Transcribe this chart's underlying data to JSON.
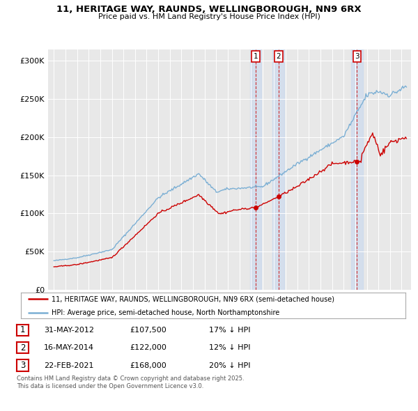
{
  "title1": "11, HERITAGE WAY, RAUNDS, WELLINGBOROUGH, NN9 6RX",
  "title2": "Price paid vs. HM Land Registry's House Price Index (HPI)",
  "background_color": "#ffffff",
  "plot_bg_color": "#e8e8e8",
  "hpi_color": "#7bafd4",
  "price_color": "#cc0000",
  "sale_dates": [
    2012.42,
    2014.37,
    2021.15
  ],
  "sale_prices": [
    107500,
    122000,
    168000
  ],
  "sale_labels": [
    "1",
    "2",
    "3"
  ],
  "legend_entries": [
    "11, HERITAGE WAY, RAUNDS, WELLINGBOROUGH, NN9 6RX (semi-detached house)",
    "HPI: Average price, semi-detached house, North Northamptonshire"
  ],
  "table_rows": [
    {
      "num": "1",
      "date": "31-MAY-2012",
      "price": "£107,500",
      "note": "17% ↓ HPI"
    },
    {
      "num": "2",
      "date": "16-MAY-2014",
      "price": "£122,000",
      "note": "12% ↓ HPI"
    },
    {
      "num": "3",
      "date": "22-FEB-2021",
      "price": "£168,000",
      "note": "20% ↓ HPI"
    }
  ],
  "footer": "Contains HM Land Registry data © Crown copyright and database right 2025.\nThis data is licensed under the Open Government Licence v3.0.",
  "yticks": [
    0,
    50000,
    100000,
    150000,
    200000,
    250000,
    300000
  ],
  "ytick_labels": [
    "£0",
    "£50K",
    "£100K",
    "£150K",
    "£200K",
    "£250K",
    "£300K"
  ],
  "xlim_start": 1994.5,
  "xlim_end": 2025.8,
  "ylim_top": 315000
}
